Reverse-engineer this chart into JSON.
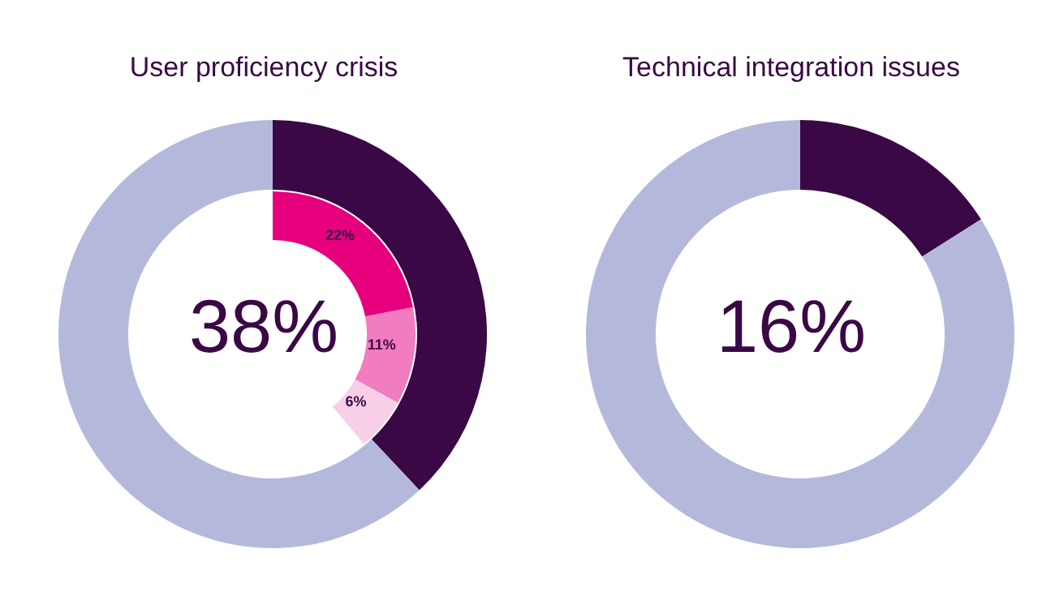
{
  "chart_data": [
    {
      "type": "donut",
      "title": "User proficiency crisis",
      "categories": [
        null,
        null,
        null,
        null
      ],
      "series": [
        {
          "values": [
            38,
            62,
            null,
            null
          ],
          "colors": [
            "#3a0845",
            "#b4b9dc",
            null,
            null
          ]
        },
        {
          "values": [
            22,
            11,
            6,
            null
          ],
          "colors": [
            "#e6007e",
            "#f17cc0",
            "#f9cfe8",
            null
          ],
          "value_labels": [
            "22%",
            "11%",
            "6%",
            null
          ]
        }
      ],
      "annotations": [
        "38%"
      ]
    },
    {
      "type": "donut",
      "title": "Technical integration issues",
      "categories": [
        null,
        null
      ],
      "series": [
        {
          "values": [
            16,
            84
          ],
          "colors": [
            "#3a0845",
            "#b4b9dc"
          ]
        }
      ],
      "annotations": [
        "16%"
      ]
    }
  ]
}
